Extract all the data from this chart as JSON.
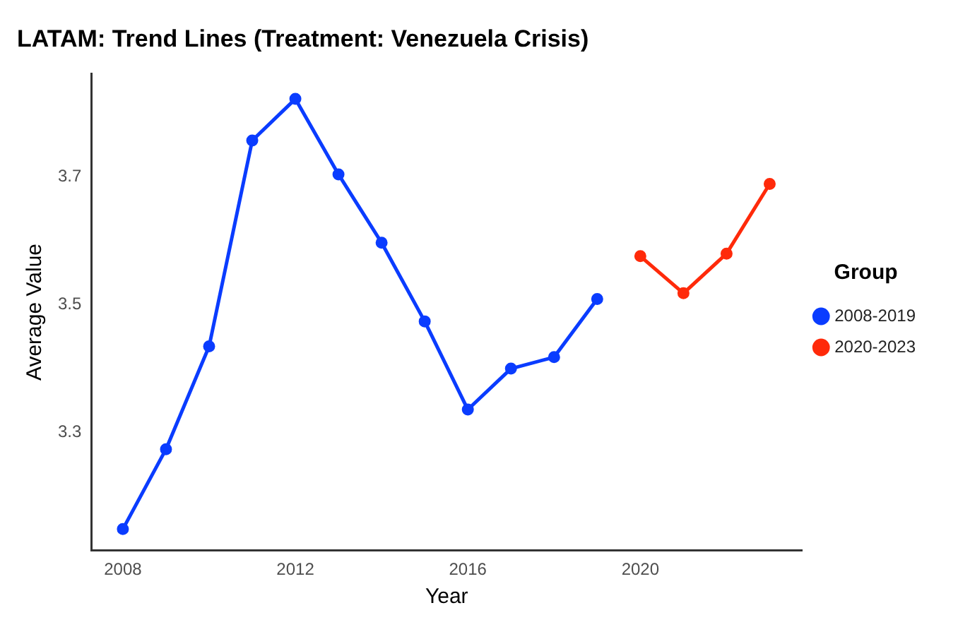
{
  "chart_data": {
    "type": "line",
    "title": "LATAM: Trend Lines (Treatment: Venezuela Crisis)",
    "xlabel": "Year",
    "ylabel": "Average Value",
    "legend_title": "Group",
    "legend": "right",
    "marker": "circle",
    "grid": false,
    "xlim": [
      2007.27,
      2023.75
    ],
    "xticks": [
      2008,
      2012,
      2016,
      2020
    ],
    "ylim": [
      3.116,
      3.861
    ],
    "yticks": [
      3.3,
      3.5,
      3.7
    ],
    "series": [
      {
        "name": "2008-2019",
        "color": "#0a3cff",
        "x": [
          2008,
          2009,
          2010,
          2011,
          2012,
          2013,
          2014,
          2015,
          2016,
          2017,
          2018,
          2019
        ],
        "values": [
          3.149,
          3.274,
          3.435,
          3.757,
          3.822,
          3.704,
          3.597,
          3.474,
          3.336,
          3.4,
          3.418,
          3.509
        ]
      },
      {
        "name": "2020-2023",
        "color": "#ff2a0a",
        "x": [
          2020,
          2021,
          2022,
          2023
        ],
        "values": [
          3.576,
          3.518,
          3.58,
          3.689
        ]
      }
    ]
  }
}
